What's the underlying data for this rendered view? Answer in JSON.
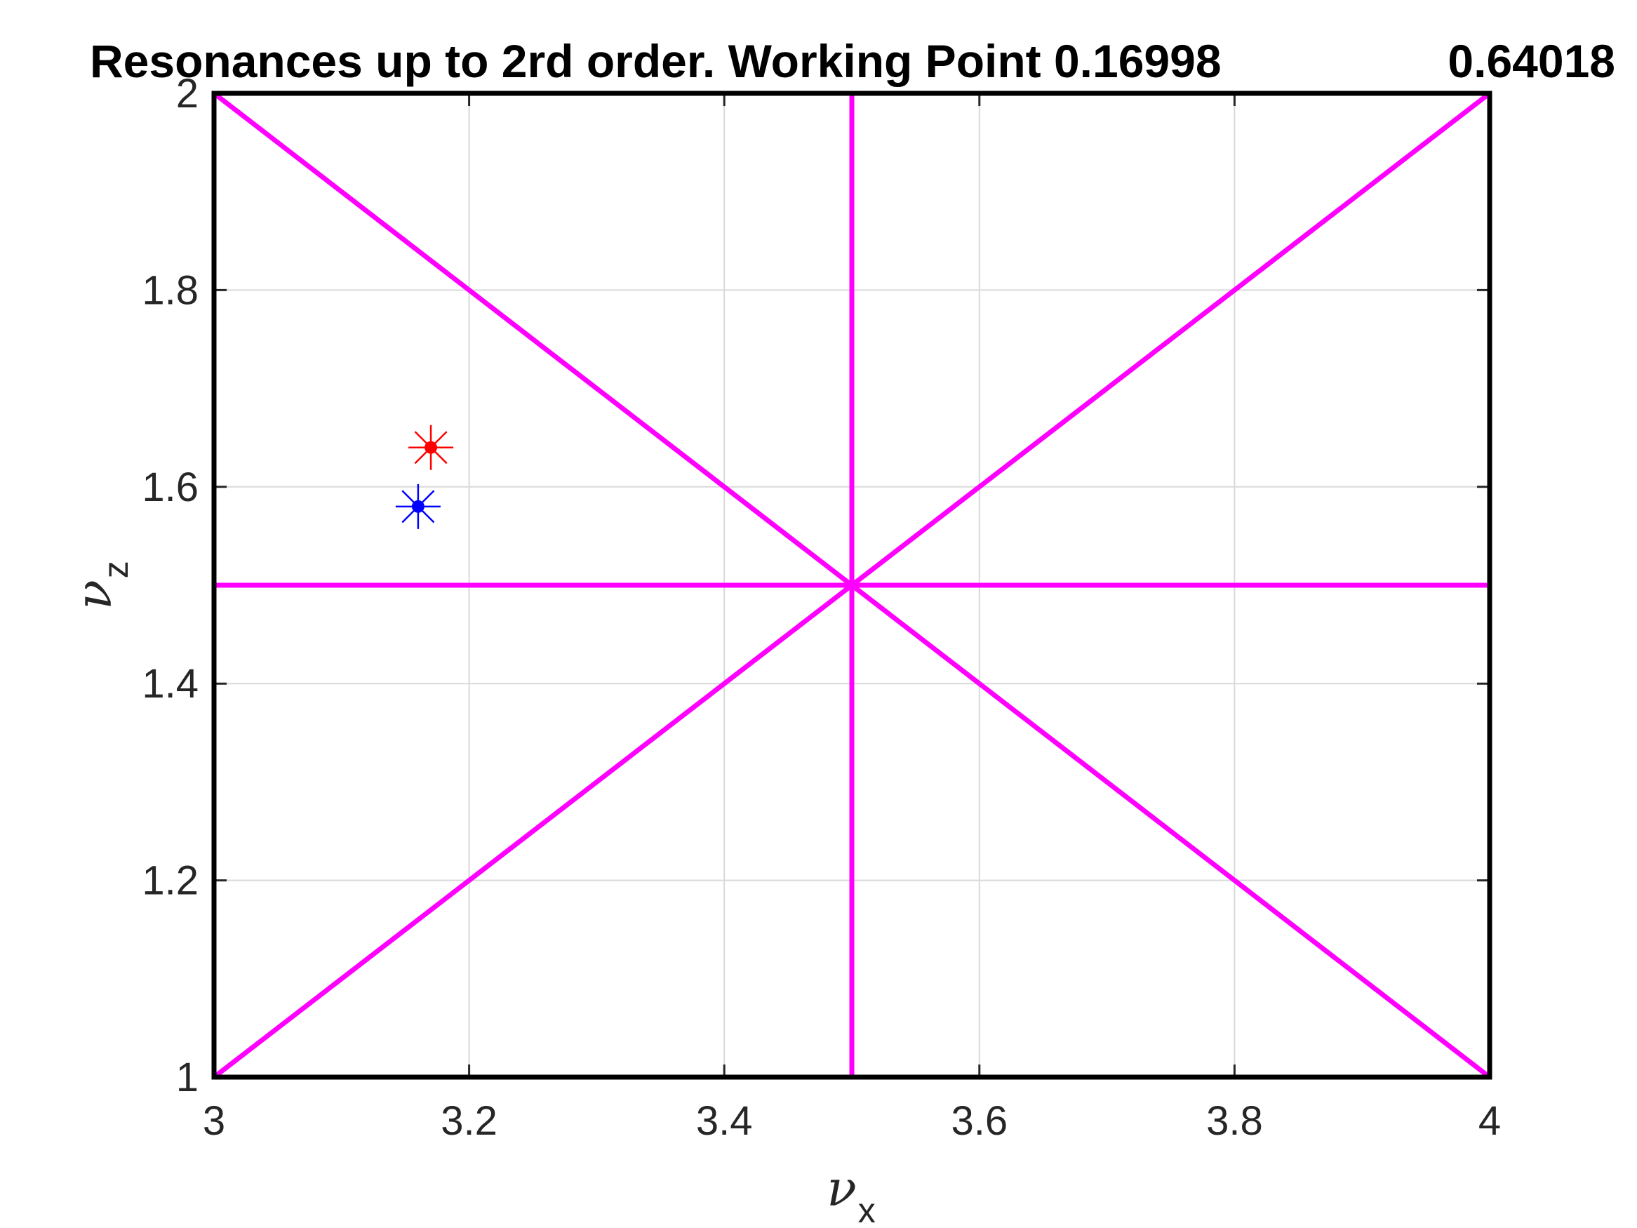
{
  "chart_data": {
    "type": "line",
    "title_parts": [
      "Resonances up to 2rd order. Working Point 0.16998",
      "0.64018"
    ],
    "xlabel": {
      "symbol": "ν",
      "sub": "x"
    },
    "ylabel": {
      "symbol": "ν",
      "sub": "z"
    },
    "xlim": [
      3,
      4
    ],
    "ylim": [
      1,
      2
    ],
    "xticks": [
      3,
      3.2,
      3.4,
      3.6,
      3.8,
      4
    ],
    "xtick_labels": [
      "3",
      "3.2",
      "3.4",
      "3.6",
      "3.8",
      "4"
    ],
    "yticks": [
      1,
      1.2,
      1.4,
      1.6,
      1.8,
      2
    ],
    "ytick_labels": [
      "1",
      "1.2",
      "1.4",
      "1.6",
      "1.8",
      "2"
    ],
    "grid": true,
    "resonance_color": "#ff00ff",
    "resonance_lines": [
      {
        "x": [
          3.5,
          3.5
        ],
        "y": [
          1,
          2
        ]
      },
      {
        "x": [
          3,
          4
        ],
        "y": [
          1.5,
          1.5
        ]
      },
      {
        "x": [
          3,
          4
        ],
        "y": [
          2,
          1
        ]
      },
      {
        "x": [
          3,
          4
        ],
        "y": [
          1,
          2
        ]
      }
    ],
    "markers": [
      {
        "x": 3.17,
        "y": 1.64,
        "color": "#ff0000",
        "style": "asterisk-dot"
      },
      {
        "x": 3.16,
        "y": 1.58,
        "color": "#0000ff",
        "style": "asterisk-dot"
      }
    ]
  }
}
